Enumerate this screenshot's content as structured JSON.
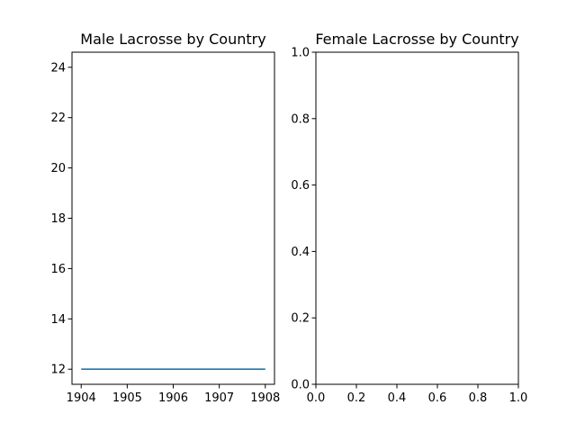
{
  "chart_data": [
    {
      "type": "line",
      "title": "Male Lacrosse by Country",
      "xlabel": "",
      "ylabel": "",
      "xlim": [
        1903.8,
        1908.2
      ],
      "ylim": [
        11.4,
        24.6
      ],
      "xticks": [
        1904,
        1905,
        1906,
        1907,
        1908
      ],
      "yticks": [
        12,
        14,
        16,
        18,
        20,
        22,
        24
      ],
      "grid": false,
      "series": [
        {
          "color": "#1f77b4",
          "x": [
            1904,
            1908
          ],
          "y": [
            12,
            12
          ]
        }
      ]
    },
    {
      "type": "line",
      "title": "Female Lacrosse by Country",
      "xlabel": "",
      "ylabel": "",
      "xlim": [
        0,
        1
      ],
      "ylim": [
        0,
        1
      ],
      "xticks": [
        "0.0",
        "0.2",
        "0.4",
        "0.6",
        "0.8",
        "1.0"
      ],
      "yticks": [
        "0.0",
        "0.2",
        "0.4",
        "0.6",
        "0.8",
        "1.0"
      ],
      "grid": false,
      "series": []
    }
  ]
}
